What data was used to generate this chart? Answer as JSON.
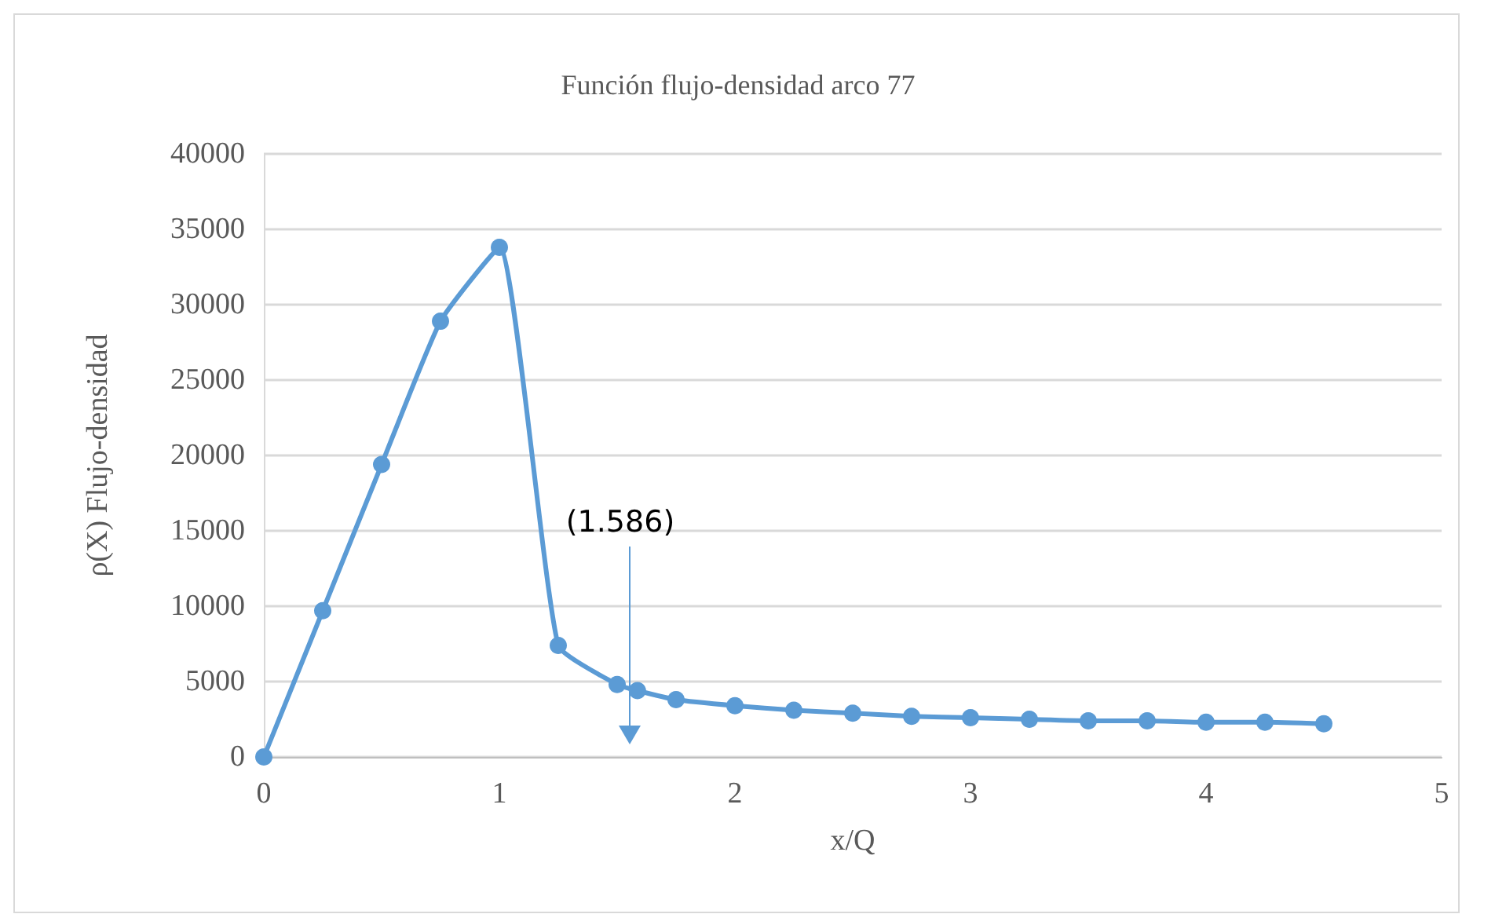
{
  "chart_data": {
    "type": "line",
    "title": "Función flujo-densidad arco 77",
    "xlabel": "x/Q",
    "ylabel": "ρ(X) Flujo-densidad",
    "x": [
      0,
      0.25,
      0.5,
      0.75,
      1,
      1.25,
      1.5,
      1.586,
      1.75,
      2,
      2.25,
      2.5,
      2.75,
      3,
      3.25,
      3.5,
      3.75,
      4,
      4.25,
      4.5
    ],
    "series": [
      {
        "color": "#5b9bd5",
        "values": [
          0,
          9700,
          19400,
          28900,
          33800,
          7400,
          4800,
          4400,
          3800,
          3400,
          3100,
          2900,
          2700,
          2600,
          2500,
          2400,
          2400,
          2300,
          2300,
          2200
        ]
      }
    ],
    "xlim": [
      0,
      5
    ],
    "xticks": [
      0,
      1,
      2,
      3,
      4,
      5
    ],
    "ylim": [
      0,
      40000
    ],
    "yticks": [
      0,
      5000,
      10000,
      15000,
      20000,
      25000,
      30000,
      35000,
      40000
    ],
    "grid": "y",
    "marker": "circle",
    "line_style": "solid",
    "annotations": [
      "(1.586)"
    ]
  }
}
